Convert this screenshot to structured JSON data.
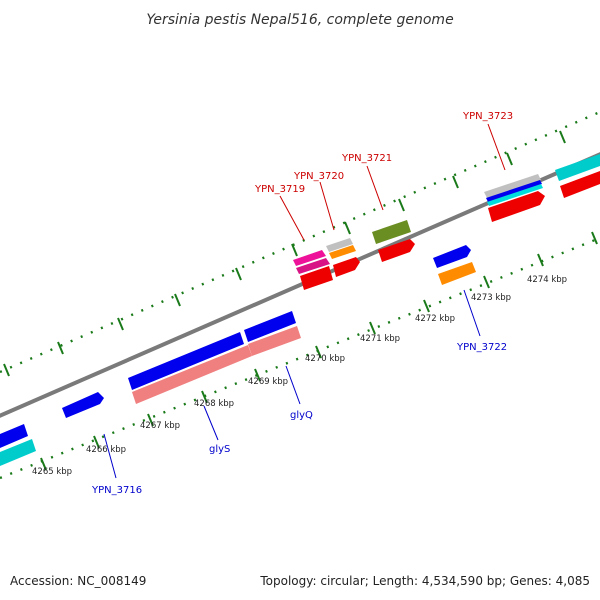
{
  "title": "Yersinia pestis Nepal516, complete genome",
  "footer": {
    "accession": "Accession: NC_008149",
    "summary": "Topology: circular; Length: 4,534,590 bp; Genes: 4,085"
  },
  "ticks": [
    "4265 kbp",
    "4266 kbp",
    "4267 kbp",
    "4268 kbp",
    "4269 kbp",
    "4270 kbp",
    "4271 kbp",
    "4272 kbp",
    "4273 kbp",
    "4274 kbp"
  ],
  "labels": {
    "top": [
      "YPN_3719",
      "YPN_3720",
      "YPN_3721",
      "YPN_3723"
    ],
    "bottom": [
      "YPN_3716",
      "glyS",
      "glyQ",
      "YPN_3722"
    ]
  },
  "colors": {
    "backbone": "#888888",
    "tick": "#1a7a1a",
    "blue": "#0000ee",
    "cyan": "#00cccc",
    "pink": "#f08080",
    "red": "#ee0000",
    "magenta": "#ee1199",
    "orange": "#ff8c00",
    "olive": "#6b8e23",
    "silver": "#c0c0c0",
    "label_top": "#cc0000",
    "label_bottom": "#0000cc"
  }
}
